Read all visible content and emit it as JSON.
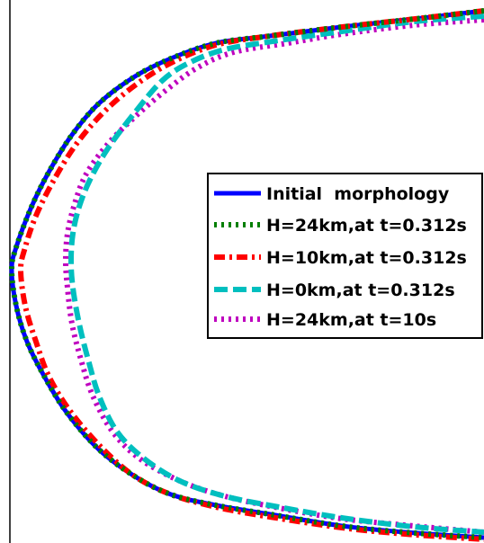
{
  "chart_data": {
    "type": "line",
    "title": "",
    "xlabel": "",
    "ylabel": "",
    "grid": false,
    "legend_position": "center-right",
    "series": [
      {
        "name": "Initial  morphology",
        "color": "#0000ff",
        "style": "solid",
        "points": [
          [
            538,
            12
          ],
          [
            470,
            20
          ],
          [
            380,
            30
          ],
          [
            300,
            40
          ],
          [
            240,
            48
          ],
          [
            190,
            65
          ],
          [
            150,
            85
          ],
          [
            110,
            115
          ],
          [
            80,
            150
          ],
          [
            55,
            190
          ],
          [
            35,
            230
          ],
          [
            18,
            275
          ],
          [
            13,
            300
          ],
          [
            18,
            340
          ],
          [
            30,
            380
          ],
          [
            50,
            420
          ],
          [
            75,
            460
          ],
          [
            110,
            500
          ],
          [
            150,
            530
          ],
          [
            190,
            550
          ],
          [
            240,
            562
          ],
          [
            300,
            572
          ],
          [
            380,
            585
          ],
          [
            450,
            592
          ],
          [
            538,
            598
          ]
        ]
      },
      {
        "name": "H=24km,at t=0.312s",
        "color": "#007f00",
        "style": "dotted",
        "points": [
          [
            538,
            12
          ],
          [
            470,
            20
          ],
          [
            380,
            30
          ],
          [
            300,
            40
          ],
          [
            240,
            48
          ],
          [
            190,
            65
          ],
          [
            150,
            85
          ],
          [
            110,
            115
          ],
          [
            80,
            150
          ],
          [
            55,
            190
          ],
          [
            35,
            230
          ],
          [
            18,
            275
          ],
          [
            13,
            300
          ],
          [
            18,
            340
          ],
          [
            30,
            380
          ],
          [
            50,
            420
          ],
          [
            75,
            460
          ],
          [
            110,
            500
          ],
          [
            150,
            530
          ],
          [
            190,
            550
          ],
          [
            240,
            562
          ],
          [
            300,
            572
          ],
          [
            380,
            585
          ],
          [
            450,
            592
          ],
          [
            538,
            598
          ]
        ]
      },
      {
        "name": "H=10km,at t=0.312s",
        "color": "#ff0000",
        "style": "dash-dot",
        "points": [
          [
            538,
            12
          ],
          [
            470,
            20
          ],
          [
            380,
            30
          ],
          [
            300,
            40
          ],
          [
            240,
            50
          ],
          [
            190,
            70
          ],
          [
            150,
            95
          ],
          [
            115,
            125
          ],
          [
            85,
            160
          ],
          [
            60,
            200
          ],
          [
            40,
            240
          ],
          [
            28,
            275
          ],
          [
            23,
            300
          ],
          [
            28,
            340
          ],
          [
            40,
            380
          ],
          [
            55,
            420
          ],
          [
            80,
            460
          ],
          [
            115,
            500
          ],
          [
            150,
            530
          ],
          [
            190,
            550
          ],
          [
            240,
            564
          ],
          [
            300,
            575
          ],
          [
            380,
            587
          ],
          [
            450,
            594
          ],
          [
            538,
            600
          ]
        ]
      },
      {
        "name": "H=0km,at t=0.312s",
        "color": "#00bfbf",
        "style": "dashed",
        "points": [
          [
            538,
            18
          ],
          [
            460,
            24
          ],
          [
            380,
            35
          ],
          [
            310,
            45
          ],
          [
            250,
            55
          ],
          [
            210,
            70
          ],
          [
            180,
            90
          ],
          [
            150,
            125
          ],
          [
            120,
            165
          ],
          [
            100,
            200
          ],
          [
            88,
            230
          ],
          [
            81,
            260
          ],
          [
            79,
            290
          ],
          [
            81,
            320
          ],
          [
            88,
            360
          ],
          [
            98,
            400
          ],
          [
            110,
            440
          ],
          [
            130,
            480
          ],
          [
            160,
            510
          ],
          [
            200,
            535
          ],
          [
            250,
            552
          ],
          [
            310,
            564
          ],
          [
            380,
            576
          ],
          [
            460,
            586
          ],
          [
            538,
            592
          ]
        ]
      },
      {
        "name": "H=24km,at t=10s",
        "color": "#bf00bf",
        "style": "dotted",
        "points": [
          [
            538,
            22
          ],
          [
            460,
            28
          ],
          [
            380,
            38
          ],
          [
            320,
            48
          ],
          [
            260,
            58
          ],
          [
            220,
            75
          ],
          [
            185,
            100
          ],
          [
            150,
            130
          ],
          [
            120,
            160
          ],
          [
            95,
            195
          ],
          [
            82,
            230
          ],
          [
            75,
            260
          ],
          [
            73,
            290
          ],
          [
            75,
            320
          ],
          [
            80,
            360
          ],
          [
            90,
            400
          ],
          [
            103,
            440
          ],
          [
            125,
            480
          ],
          [
            155,
            510
          ],
          [
            200,
            535
          ],
          [
            250,
            552
          ],
          [
            310,
            565
          ],
          [
            380,
            577
          ],
          [
            460,
            585
          ],
          [
            538,
            592
          ]
        ]
      }
    ]
  }
}
